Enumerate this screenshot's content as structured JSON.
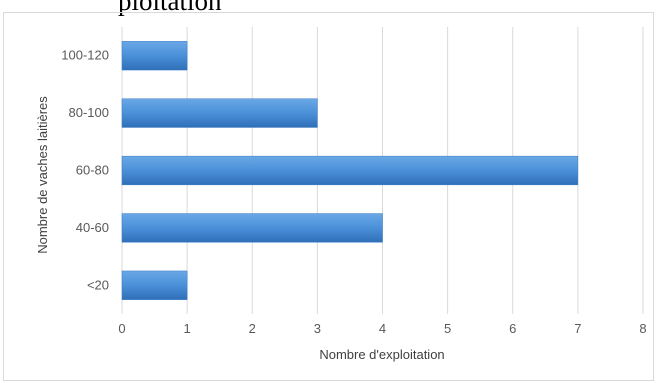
{
  "page": {
    "top_text": "ploitation"
  },
  "chart_data": {
    "type": "bar",
    "orientation": "horizontal",
    "categories": [
      "<20",
      "40-60",
      "60-80",
      "80-100",
      "100-120"
    ],
    "values": [
      1,
      4,
      7,
      3,
      1
    ],
    "title": "",
    "xlabel": "Nombre d'exploitation",
    "ylabel": "Nombre de vaches laitières",
    "xlim": [
      0,
      8
    ],
    "xticks": [
      "0",
      "1",
      "2",
      "3",
      "4",
      "5",
      "6",
      "7",
      "8"
    ],
    "grid": "vertical",
    "bar_color": "#4a90d9",
    "bar_color_dark": "#2e6db4",
    "legend": "none"
  }
}
